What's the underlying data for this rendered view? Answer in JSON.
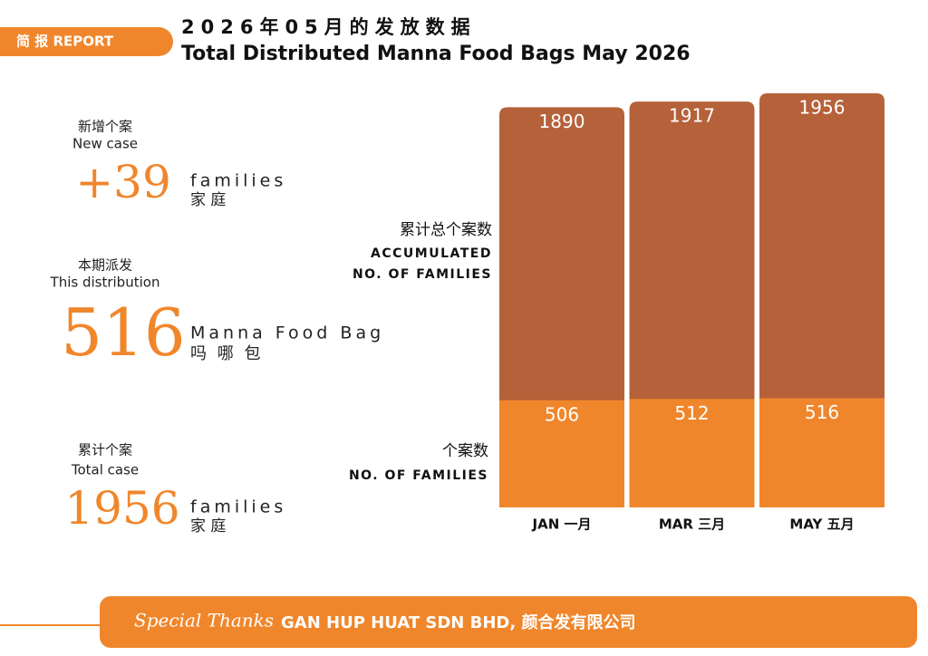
{
  "header": {
    "badge": "简 报 REPORT",
    "title_zh": "2026年05月的发放数据",
    "title_en": "Total Distributed Manna Food Bags May 2026"
  },
  "stats": [
    {
      "label_zh": "新增个案",
      "label_en": "New case",
      "value": "+39",
      "unit_en": "families",
      "unit_zh": "家 庭"
    },
    {
      "label_zh": "本期派发",
      "label_en": "This distribution",
      "value": "516",
      "unit_en": "Manna Food Bag",
      "unit_zh": "吗 哪 包"
    },
    {
      "label_zh": "累计个案",
      "label_en": "Total case",
      "value": "1956",
      "unit_en": "families",
      "unit_zh": "家 庭"
    }
  ],
  "chart_data": {
    "type": "bar",
    "categories": [
      "JAN 一月",
      "MAR 三月",
      "MAY 五月"
    ],
    "series": [
      {
        "name": "累计总个案数",
        "name_en": [
          "ACCUMULATED",
          "NO. OF FAMILIES"
        ],
        "color": "#b5623a",
        "values": [
          1890,
          1917,
          1956
        ]
      },
      {
        "name": "个案数",
        "name_en": [
          "NO. OF FAMILIES"
        ],
        "color": "#f0862b",
        "values": [
          506,
          512,
          516
        ]
      }
    ]
  },
  "footer": {
    "thanks": "Special Thanks",
    "sponsor": "GAN HUP HUAT SDN BHD, 颜合发有限公司"
  }
}
